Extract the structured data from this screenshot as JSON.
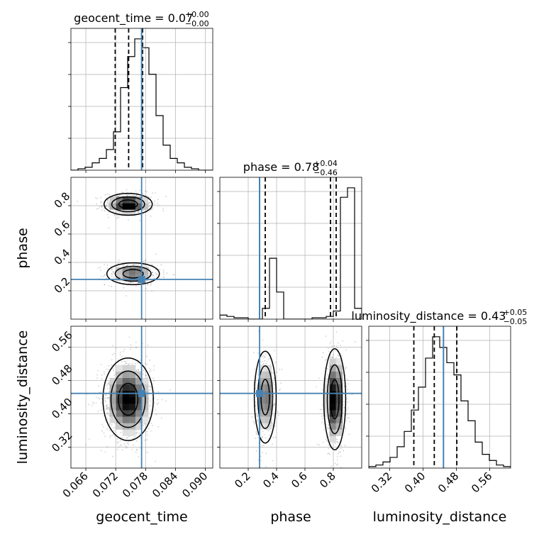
{
  "chart_data": {
    "type": "corner",
    "colors": {
      "truth": "#4682b4",
      "ink": "#000000",
      "grid": "#b0b0b0",
      "scatter": "#7a7a7a"
    },
    "parameters": [
      {
        "key": "geocent_time",
        "label": "geocent_time",
        "range": [
          0.063,
          0.0915
        ],
        "ticks": [
          0.066,
          0.072,
          0.078,
          0.084,
          0.09
        ],
        "tick_labels": [
          "0.066",
          "0.072",
          "0.078",
          "0.084",
          "0.090"
        ],
        "truth": 0.0772,
        "title": {
          "main": "geocent_time = 0.07",
          "plus": "+0.00",
          "minus": "−0.00"
        },
        "quantiles": [
          0.0719,
          0.0746,
          0.0774
        ],
        "hist_edges_range": [
          0.063,
          0.0915
        ],
        "hist": [
          0,
          1,
          2,
          5,
          8,
          14,
          26,
          56,
          77,
          89,
          83,
          65,
          37,
          17,
          8,
          5,
          2,
          1,
          0,
          0
        ]
      },
      {
        "key": "phase",
        "label": "phase",
        "range": [
          0.0,
          1.0
        ],
        "ticks": [
          0.2,
          0.4,
          0.6,
          0.8
        ],
        "tick_labels": [
          "0.2",
          "0.4",
          "0.6",
          "0.8"
        ],
        "truth": 0.28,
        "title": {
          "main": "phase = 0.78",
          "plus": "+0.04",
          "minus": "−0.46"
        },
        "quantiles": [
          0.32,
          0.78,
          0.82
        ],
        "hist_edges_range": [
          0.0,
          1.0
        ],
        "hist": [
          3,
          2,
          1,
          1,
          0,
          0,
          8,
          45,
          20,
          0,
          0,
          0,
          0,
          1,
          1,
          2,
          6,
          90,
          97,
          8
        ]
      },
      {
        "key": "luminosity_distance",
        "label": "luminosity_distance",
        "range": [
          0.27,
          0.61
        ],
        "ticks": [
          0.32,
          0.4,
          0.48,
          0.56
        ],
        "tick_labels": [
          "0.32",
          "0.40",
          "0.48",
          "0.56"
        ],
        "truth": 0.449,
        "title": {
          "main": "luminosity_distance = 0.43",
          "plus": "+0.05",
          "minus": "−0.05"
        },
        "quantiles": [
          0.378,
          0.427,
          0.481
        ],
        "hist_edges_range": [
          0.27,
          0.61
        ],
        "hist": [
          1,
          2,
          4,
          7,
          14,
          24,
          38,
          53,
          72,
          86,
          79,
          69,
          61,
          44,
          31,
          17,
          9,
          5,
          2,
          1
        ]
      }
    ],
    "pairs": [
      {
        "x": "geocent_time",
        "y": "phase",
        "modes": [
          {
            "cx": 0.0745,
            "cy": 0.81,
            "sx": 0.0022,
            "sy": 0.035,
            "w": 0.62
          },
          {
            "cx": 0.0755,
            "cy": 0.32,
            "sx": 0.0024,
            "sy": 0.035,
            "w": 0.38
          }
        ]
      },
      {
        "x": "geocent_time",
        "y": "luminosity_distance",
        "modes": [
          {
            "cx": 0.0745,
            "cy": 0.435,
            "sx": 0.0023,
            "sy": 0.045,
            "w": 1.0
          }
        ]
      },
      {
        "x": "phase",
        "y": "luminosity_distance",
        "modes": [
          {
            "cx": 0.32,
            "cy": 0.44,
            "sx": 0.035,
            "sy": 0.05,
            "w": 0.38
          },
          {
            "cx": 0.81,
            "cy": 0.435,
            "sx": 0.035,
            "sy": 0.055,
            "w": 0.62
          }
        ]
      }
    ],
    "grid": true
  }
}
